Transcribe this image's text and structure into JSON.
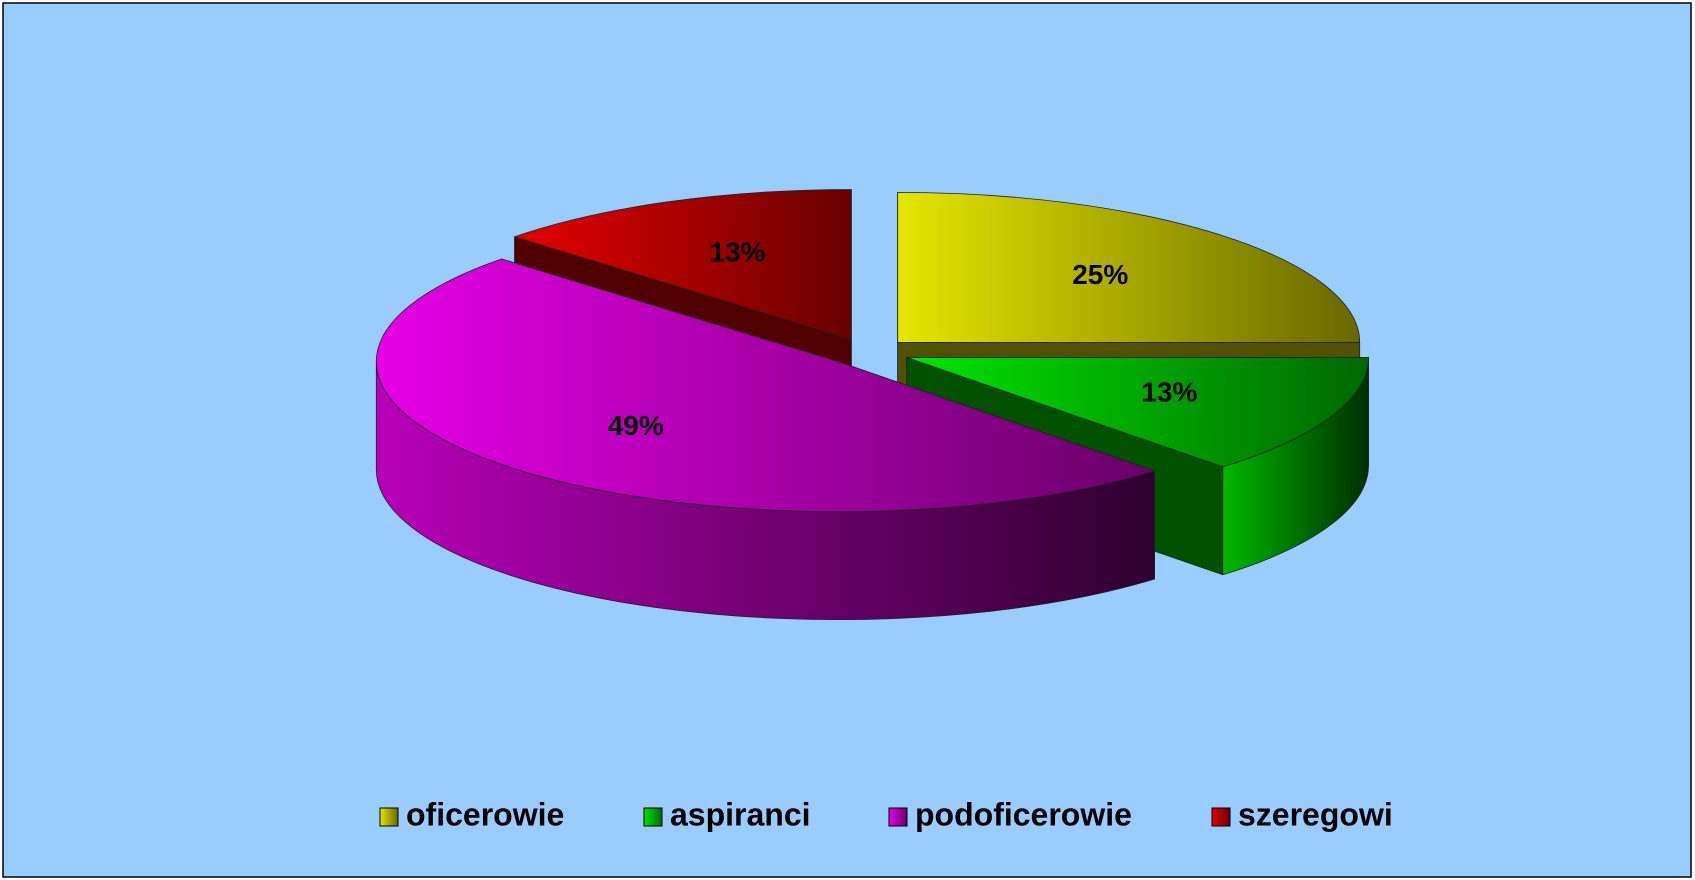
{
  "chart_data": {
    "type": "pie",
    "style": "3d-exploded",
    "categories": [
      "oficerowie",
      "aspiranci",
      "podoficerowie",
      "szeregowi"
    ],
    "values": [
      25,
      13,
      49,
      13
    ],
    "value_labels": [
      "25%",
      "13%",
      "49%",
      "13%"
    ],
    "colors": [
      "#e6e600",
      "#00e600",
      "#e600e6",
      "#e60000"
    ],
    "legend": "bottom"
  }
}
